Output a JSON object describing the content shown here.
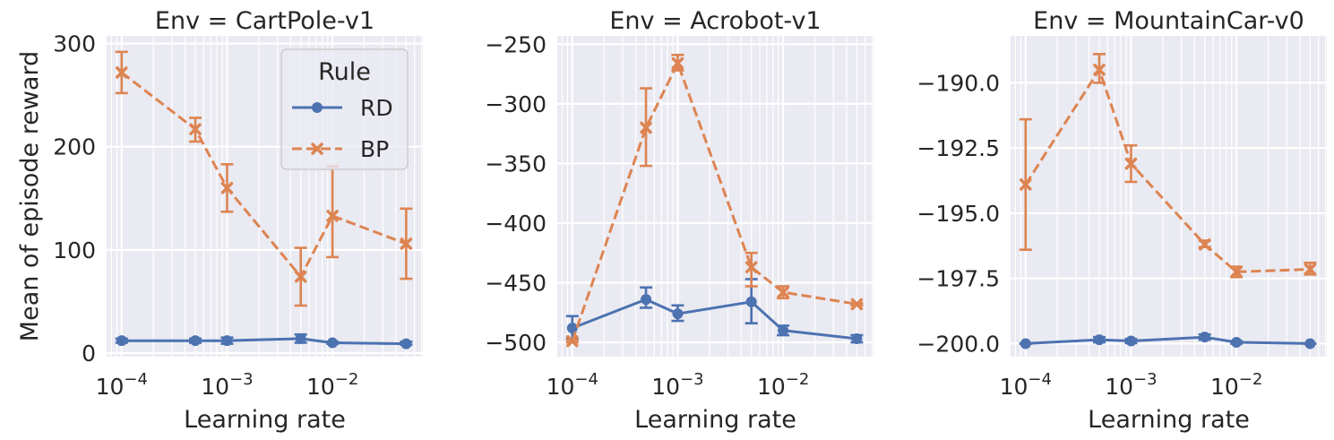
{
  "chart_data": [
    {
      "type": "line",
      "title": "Env = CartPole-v1",
      "xlabel": "Learning rate",
      "ylabel": "Mean of episode reward",
      "x": [
        0.0001,
        0.0005,
        0.001,
        0.005,
        0.01,
        0.05
      ],
      "xscale": "log",
      "xlim": [
        7.2e-05,
        0.072
      ],
      "xticks": [
        {
          "v": 0.0001,
          "label": "10",
          "exp": "−4"
        },
        {
          "v": 0.001,
          "label": "10",
          "exp": "−3"
        },
        {
          "v": 0.01,
          "label": "10",
          "exp": "−2"
        }
      ],
      "ylim": [
        -3.5,
        307.5
      ],
      "yticks": [
        {
          "v": 0,
          "label": "0"
        },
        {
          "v": 100,
          "label": "100"
        },
        {
          "v": 200,
          "label": "200"
        },
        {
          "v": 300,
          "label": "300"
        }
      ],
      "series": [
        {
          "name": "RD",
          "color": "#4c72b0",
          "marker": "circle",
          "dash": false,
          "values": [
            12,
            12,
            12,
            14,
            10,
            9
          ],
          "err_low": [
            10,
            10,
            9,
            10,
            9,
            8
          ],
          "err_high": [
            14,
            14,
            15,
            18,
            11,
            11
          ]
        },
        {
          "name": "BP",
          "color": "#dd8452",
          "marker": "x",
          "dash": true,
          "values": [
            272,
            217,
            160,
            74,
            133,
            106
          ],
          "err_low": [
            252,
            205,
            137,
            46,
            93,
            72
          ],
          "err_high": [
            292,
            228,
            183,
            102,
            181,
            140
          ]
        }
      ],
      "legend": {
        "title": "Rule",
        "placement": "upper right"
      }
    },
    {
      "type": "line",
      "title": "Env = Acrobot-v1",
      "xlabel": "Learning rate",
      "ylabel": "",
      "x": [
        0.0001,
        0.0005,
        0.001,
        0.005,
        0.01,
        0.05
      ],
      "xscale": "log",
      "xlim": [
        7.2e-05,
        0.072
      ],
      "xticks": [
        {
          "v": 0.0001,
          "label": "10",
          "exp": "−4"
        },
        {
          "v": 0.001,
          "label": "10",
          "exp": "−3"
        },
        {
          "v": 0.01,
          "label": "10",
          "exp": "−2"
        }
      ],
      "ylim": [
        -512,
        -243
      ],
      "yticks": [
        {
          "v": -500,
          "label": "−500"
        },
        {
          "v": -450,
          "label": "−450"
        },
        {
          "v": -400,
          "label": "−400"
        },
        {
          "v": -350,
          "label": "−350"
        },
        {
          "v": -300,
          "label": "−300"
        },
        {
          "v": -250,
          "label": "−250"
        }
      ],
      "series": [
        {
          "name": "RD",
          "color": "#4c72b0",
          "marker": "circle",
          "dash": false,
          "values": [
            -488,
            -464,
            -476,
            -466,
            -490,
            -497
          ],
          "err_low": [
            -497,
            -471,
            -482,
            -484,
            -494,
            -500
          ],
          "err_high": [
            -478,
            -454,
            -469,
            -447,
            -486,
            -494
          ]
        },
        {
          "name": "BP",
          "color": "#dd8452",
          "marker": "x",
          "dash": true,
          "values": [
            -499,
            -320,
            -266,
            -437,
            -458,
            -468
          ],
          "err_low": [
            -500,
            -352,
            -272,
            -453,
            -463,
            -469
          ],
          "err_high": [
            -498,
            -287,
            -259,
            -425,
            -453,
            -467
          ]
        }
      ]
    },
    {
      "type": "line",
      "title": "Env = MountainCar-v0",
      "xlabel": "Learning rate",
      "ylabel": "",
      "x": [
        0.0001,
        0.0005,
        0.001,
        0.005,
        0.01,
        0.05
      ],
      "xscale": "log",
      "xlim": [
        7.2e-05,
        0.072
      ],
      "xticks": [
        {
          "v": 0.0001,
          "label": "10",
          "exp": "−4"
        },
        {
          "v": 0.001,
          "label": "10",
          "exp": "−3"
        },
        {
          "v": 0.01,
          "label": "10",
          "exp": "−2"
        }
      ],
      "ylim": [
        -200.5,
        -188.2
      ],
      "yticks": [
        {
          "v": -200,
          "label": "−200.0"
        },
        {
          "v": -197.5,
          "label": "−197.5"
        },
        {
          "v": -195,
          "label": "−195.0"
        },
        {
          "v": -192.5,
          "label": "−192.5"
        },
        {
          "v": -190,
          "label": "−190.0"
        }
      ],
      "series": [
        {
          "name": "RD",
          "color": "#4c72b0",
          "marker": "circle",
          "dash": false,
          "values": [
            -200,
            -199.85,
            -199.9,
            -199.75,
            -199.95,
            -200
          ],
          "err_low": [
            -200,
            -199.95,
            -199.98,
            -199.85,
            -200,
            -200
          ],
          "err_high": [
            -200,
            -199.75,
            -199.82,
            -199.65,
            -199.9,
            -200
          ]
        },
        {
          "name": "BP",
          "color": "#dd8452",
          "marker": "x",
          "dash": true,
          "values": [
            -193.9,
            -189.5,
            -193.1,
            -196.2,
            -197.25,
            -197.15
          ],
          "err_low": [
            -196.4,
            -190.0,
            -193.8,
            -196.3,
            -197.45,
            -197.35
          ],
          "err_high": [
            -191.4,
            -188.9,
            -192.4,
            -196.05,
            -197.05,
            -196.9
          ]
        }
      ]
    }
  ]
}
